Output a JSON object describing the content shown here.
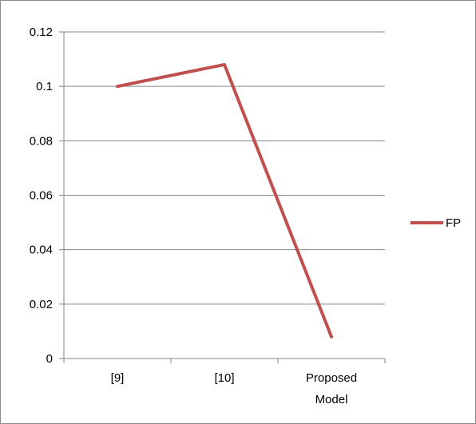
{
  "chart_data": {
    "type": "line",
    "title": "",
    "xlabel": "",
    "ylabel": "",
    "categories": [
      "[9]",
      "[10]",
      "Proposed Model"
    ],
    "series": [
      {
        "name": "FP",
        "values": [
          0.1,
          0.108,
          0.008
        ],
        "color": "#C0504D"
      }
    ],
    "ylim": [
      0,
      0.12
    ],
    "yticks": [
      "0",
      "0.02",
      "0.04",
      "0.06",
      "0.08",
      "0.1",
      "0.12"
    ],
    "grid": true,
    "legend_position": "right"
  }
}
